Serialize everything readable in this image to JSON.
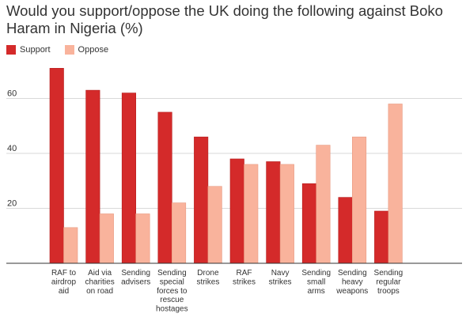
{
  "chart_data": {
    "type": "bar",
    "title": "Would you support/oppose the UK doing the following against Boko Haram in Nigeria (%)",
    "categories": [
      [
        "RAF to",
        "airdrop",
        "aid"
      ],
      [
        "Aid via",
        "charities",
        "on road"
      ],
      [
        "Sending",
        "advisers"
      ],
      [
        "Sending",
        "special",
        "forces to",
        "rescue",
        "hostages"
      ],
      [
        "Drone",
        "strikes"
      ],
      [
        "RAF",
        "strikes"
      ],
      [
        "Navy",
        "strikes"
      ],
      [
        "Sending",
        "small",
        "arms"
      ],
      [
        "Sending",
        "heavy",
        "weapons"
      ],
      [
        "Sending",
        "regular",
        "troops"
      ]
    ],
    "series": [
      {
        "name": "Support",
        "color": "#d42a2a",
        "values": [
          71,
          63,
          62,
          55,
          46,
          38,
          37,
          29,
          24,
          19
        ]
      },
      {
        "name": "Oppose",
        "color": "#f9b39c",
        "values": [
          13,
          18,
          18,
          22,
          28,
          36,
          36,
          43,
          46,
          58
        ]
      }
    ],
    "ylim": [
      0,
      78
    ],
    "yticks": [
      20,
      40,
      60
    ],
    "grid": true,
    "legend": "top-left"
  }
}
